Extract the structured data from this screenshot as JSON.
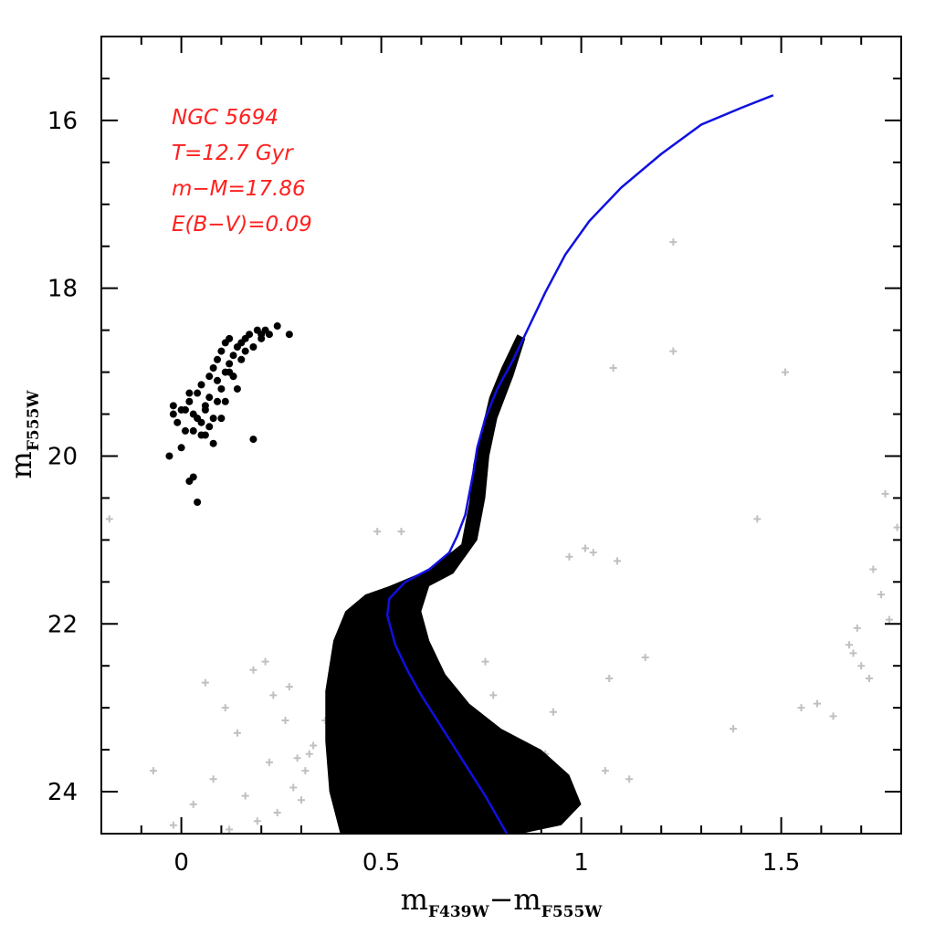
{
  "chart_data": {
    "type": "scatter",
    "title": "",
    "xlabel": {
      "main": "m",
      "sub1": "F439W",
      "dash": "−",
      "main2": "m",
      "sub2": "F555W"
    },
    "ylabel": {
      "main": "m",
      "sub": "F555W"
    },
    "xlim": [
      -0.2,
      1.8
    ],
    "ylim": [
      24.5,
      15.0
    ],
    "y_inverted": true,
    "grid": false,
    "x_ticks": [
      0,
      0.5,
      1,
      1.5
    ],
    "x_tick_labels": [
      "0",
      "0.5",
      "1",
      "1.5"
    ],
    "y_ticks": [
      16,
      18,
      20,
      22,
      24
    ],
    "y_tick_labels": [
      "16",
      "18",
      "20",
      "22",
      "24"
    ],
    "annotations": {
      "color": "#ff2020",
      "lines": [
        "NGC 5694",
        "T=12.7 Gyr",
        "m−M=17.86",
        "E(B−V)=0.09"
      ]
    },
    "colors": {
      "members": "#000000",
      "field": "#c0c0c0",
      "isochrone": "#1010e0"
    },
    "isochrone": {
      "x": [
        0.82,
        0.79,
        0.76,
        0.72,
        0.68,
        0.64,
        0.6,
        0.565,
        0.535,
        0.515,
        0.52,
        0.56,
        0.62,
        0.67,
        0.69,
        0.71,
        0.72,
        0.73,
        0.74,
        0.76,
        0.79,
        0.83,
        0.87,
        0.91,
        0.96,
        1.02,
        1.1,
        1.2,
        1.3,
        1.4,
        1.48
      ],
      "y": [
        24.55,
        24.3,
        24.05,
        23.75,
        23.45,
        23.15,
        22.85,
        22.55,
        22.25,
        21.9,
        21.7,
        21.5,
        21.35,
        21.15,
        20.95,
        20.7,
        20.45,
        20.2,
        19.9,
        19.55,
        19.2,
        18.85,
        18.45,
        18.05,
        17.6,
        17.2,
        16.8,
        16.4,
        16.05,
        15.85,
        15.7
      ]
    },
    "series": [
      {
        "name": "",
        "role": "field",
        "marker": "plus",
        "x": [
          -0.18,
          0.06,
          0.11,
          0.18,
          0.21,
          0.23,
          0.26,
          0.29,
          0.31,
          0.33,
          0.36,
          0.38,
          0.49,
          0.55,
          0.58,
          0.61,
          0.62,
          0.67,
          0.71,
          0.74,
          0.78,
          0.82,
          0.86,
          0.88,
          0.91,
          0.93,
          0.97,
          1.01,
          1.03,
          1.06,
          1.07,
          1.09,
          1.12,
          1.16,
          1.23,
          1.23,
          1.51,
          1.44,
          1.38,
          1.55,
          1.59,
          1.63,
          1.67,
          1.68,
          1.69,
          1.7,
          1.72,
          1.73,
          1.75,
          1.76,
          1.77,
          1.79,
          -0.07,
          -0.02,
          0.03,
          0.08,
          0.12,
          0.14,
          0.16,
          0.19,
          0.22,
          0.24,
          0.27,
          0.28,
          0.3,
          0.32,
          0.56,
          0.59,
          0.63,
          0.65,
          0.69,
          0.72,
          0.76,
          1.08,
          0.48
        ],
        "y": [
          20.75,
          22.7,
          23.0,
          22.55,
          22.45,
          22.85,
          23.15,
          23.6,
          23.75,
          23.45,
          23.15,
          22.95,
          20.9,
          20.9,
          22.85,
          23.1,
          23.45,
          23.25,
          22.95,
          23.2,
          22.85,
          23.6,
          23.45,
          23.75,
          23.55,
          23.05,
          21.2,
          21.1,
          21.15,
          23.75,
          22.65,
          21.25,
          23.85,
          22.4,
          17.45,
          18.75,
          19.0,
          20.75,
          23.25,
          23.0,
          22.95,
          23.1,
          22.25,
          22.35,
          22.05,
          22.5,
          22.65,
          21.35,
          21.65,
          20.45,
          21.95,
          20.85,
          23.75,
          24.4,
          24.15,
          23.85,
          24.45,
          23.3,
          24.05,
          24.35,
          23.65,
          24.25,
          22.75,
          23.95,
          24.1,
          23.55,
          23.9,
          22.75,
          24.25,
          23.05,
          23.85,
          24.45,
          22.45,
          18.95,
          22.6
        ]
      },
      {
        "name": "",
        "role": "members",
        "marker": "circle",
        "x": [
          -0.03,
          -0.02,
          -0.01,
          0.0,
          0.01,
          0.02,
          0.03,
          0.04,
          0.05,
          0.05,
          0.06,
          0.07,
          0.07,
          0.08,
          0.08,
          0.09,
          0.09,
          0.1,
          0.1,
          0.11,
          0.11,
          0.12,
          0.12,
          0.13,
          0.13,
          0.14,
          0.15,
          0.16,
          0.17,
          0.18,
          0.19,
          0.2,
          0.21,
          0.22,
          0.24,
          0.27,
          0.02,
          0.03,
          0.04,
          0.01,
          0.06,
          0.09,
          0.12,
          0.18,
          0.1,
          0.08,
          0.05,
          0.0,
          0.04,
          0.14,
          0.2,
          0.16,
          0.11,
          0.07,
          0.13,
          -0.02,
          0.02,
          0.06,
          0.03,
          0.15
        ],
        "y": [
          20.0,
          19.4,
          19.6,
          19.45,
          19.7,
          19.35,
          19.5,
          19.25,
          19.6,
          19.15,
          19.4,
          19.05,
          19.3,
          18.95,
          19.55,
          19.1,
          18.85,
          19.2,
          18.75,
          19.0,
          18.65,
          18.9,
          18.6,
          18.8,
          19.05,
          18.7,
          18.65,
          18.6,
          18.55,
          18.7,
          18.5,
          18.6,
          18.5,
          18.55,
          18.45,
          18.55,
          20.3,
          20.25,
          20.55,
          19.45,
          19.75,
          19.35,
          19.0,
          19.8,
          19.55,
          19.85,
          19.75,
          19.9,
          19.55,
          19.2,
          18.55,
          18.75,
          19.35,
          19.65,
          19.05,
          19.5,
          19.25,
          19.45,
          19.7,
          18.85
        ]
      }
    ]
  }
}
